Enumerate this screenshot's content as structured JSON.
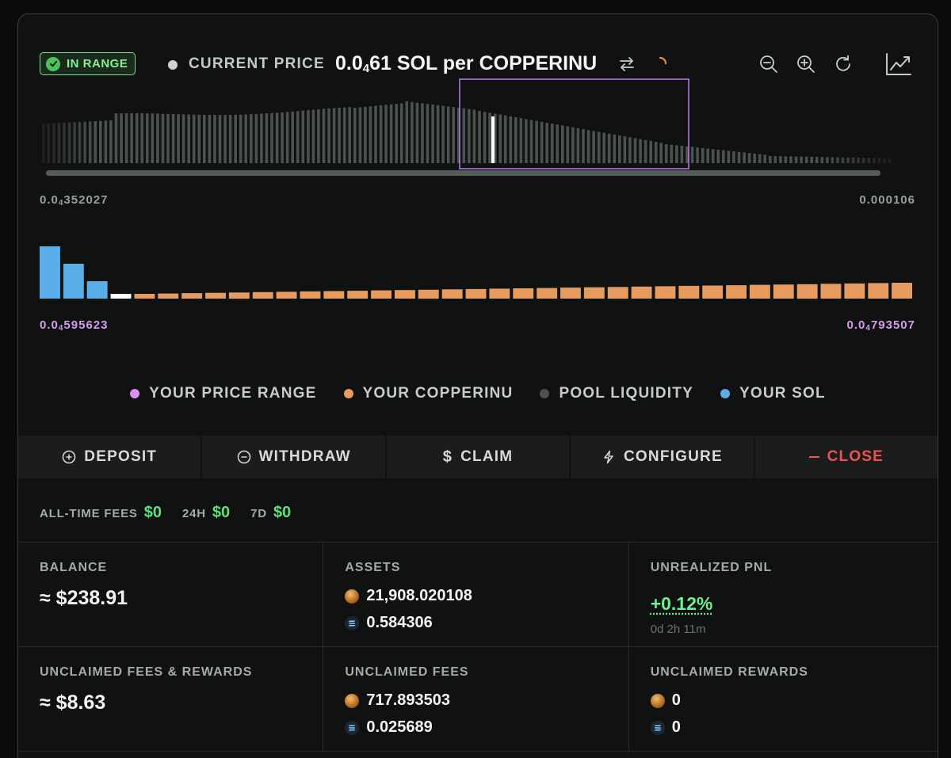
{
  "header": {
    "status_badge": "IN RANGE",
    "current_price_label": "CURRENT PRICE",
    "current_price_prefix": "0.0",
    "current_price_zeros": "4",
    "current_price_suffix": "61 SOL per COPPERINU"
  },
  "liquidity_chart": {
    "range_min": {
      "prefix": "0.0",
      "zeros": "4",
      "suffix": "352027"
    },
    "range_max": "0.000106"
  },
  "position_chart": {
    "min": {
      "prefix": "0.0",
      "zeros": "4",
      "suffix": "595623"
    },
    "max": {
      "prefix": "0.0",
      "zeros": "4",
      "suffix": "793507"
    }
  },
  "legend": [
    {
      "label": "YOUR PRICE RANGE",
      "color": "#d78ff0"
    },
    {
      "label": "YOUR COPPERINU",
      "color": "#e89b5f"
    },
    {
      "label": "POOL LIQUIDITY",
      "color": "#4d514f"
    },
    {
      "label": "YOUR SOL",
      "color": "#5aafe8"
    }
  ],
  "actions": {
    "deposit": "DEPOSIT",
    "withdraw": "WITHDRAW",
    "claim": "CLAIM",
    "configure": "CONFIGURE",
    "close": "CLOSE"
  },
  "fees": {
    "all_time_label": "ALL-TIME FEES",
    "all_time_value": "$0",
    "day_label": "24H",
    "day_value": "$0",
    "week_label": "7D",
    "week_value": "$0"
  },
  "stats": {
    "balance_label": "BALANCE",
    "balance_value": "≈ $238.91",
    "assets_label": "ASSETS",
    "assets_copper": "21,908.020108",
    "assets_sol": "0.584306",
    "pnl_label": "UNREALIZED PNL",
    "pnl_value": "+0.12%",
    "pnl_age": "0d 2h 11m",
    "unclaimed_total_label": "UNCLAIMED FEES & REWARDS",
    "unclaimed_total_value": "≈ $8.63",
    "unclaimed_fees_label": "UNCLAIMED FEES",
    "unclaimed_fees_copper": "717.893503",
    "unclaimed_fees_sol": "0.025689",
    "unclaimed_rewards_label": "UNCLAIMED REWARDS",
    "unclaimed_rewards_copper": "0",
    "unclaimed_rewards_sol": "0"
  },
  "colors": {
    "accent_green": "#6ff08a",
    "copper_orange": "#e89b5f",
    "sol_blue": "#5aafe8",
    "range_purple": "#d78ff0",
    "close_red": "#ee5252"
  }
}
